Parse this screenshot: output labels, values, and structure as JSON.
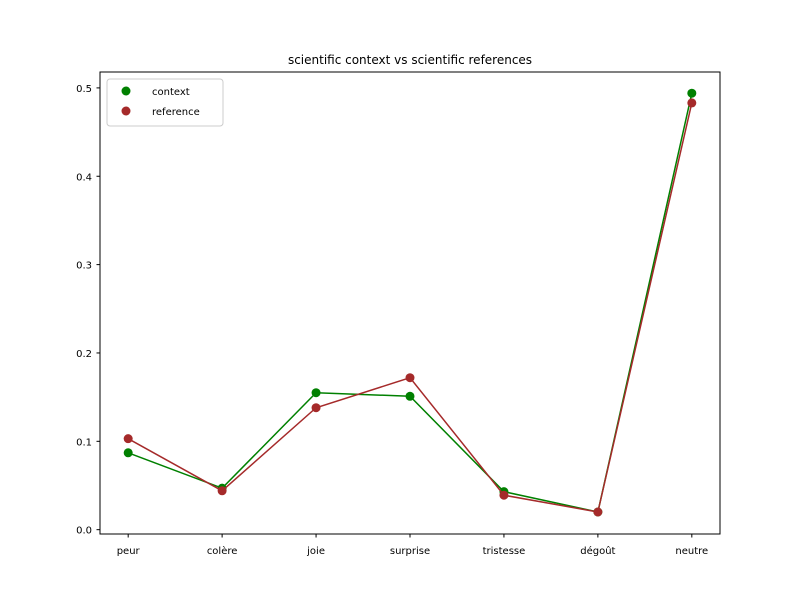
{
  "chart_data": {
    "type": "line",
    "title": "scientific context vs scientific references",
    "xlabel": "",
    "ylabel": "",
    "categories": [
      "peur",
      "colère",
      "joie",
      "surprise",
      "tristesse",
      "dégoût",
      "neutre"
    ],
    "ylim": [
      -0.0049,
      0.518
    ],
    "yticks": [
      0.0,
      0.1,
      0.2,
      0.3,
      0.4,
      0.5
    ],
    "ytick_labels": [
      "0.0",
      "0.1",
      "0.2",
      "0.3",
      "0.4",
      "0.5"
    ],
    "grid": false,
    "legend_position": "upper-left",
    "series": [
      {
        "name": "context",
        "color": "#008000",
        "marker": "circle",
        "values": [
          0.087,
          0.047,
          0.155,
          0.151,
          0.043,
          0.02,
          0.494
        ]
      },
      {
        "name": "reference",
        "color": "#a52a2a",
        "marker": "circle",
        "values": [
          0.103,
          0.044,
          0.138,
          0.172,
          0.039,
          0.02,
          0.483
        ]
      }
    ]
  }
}
